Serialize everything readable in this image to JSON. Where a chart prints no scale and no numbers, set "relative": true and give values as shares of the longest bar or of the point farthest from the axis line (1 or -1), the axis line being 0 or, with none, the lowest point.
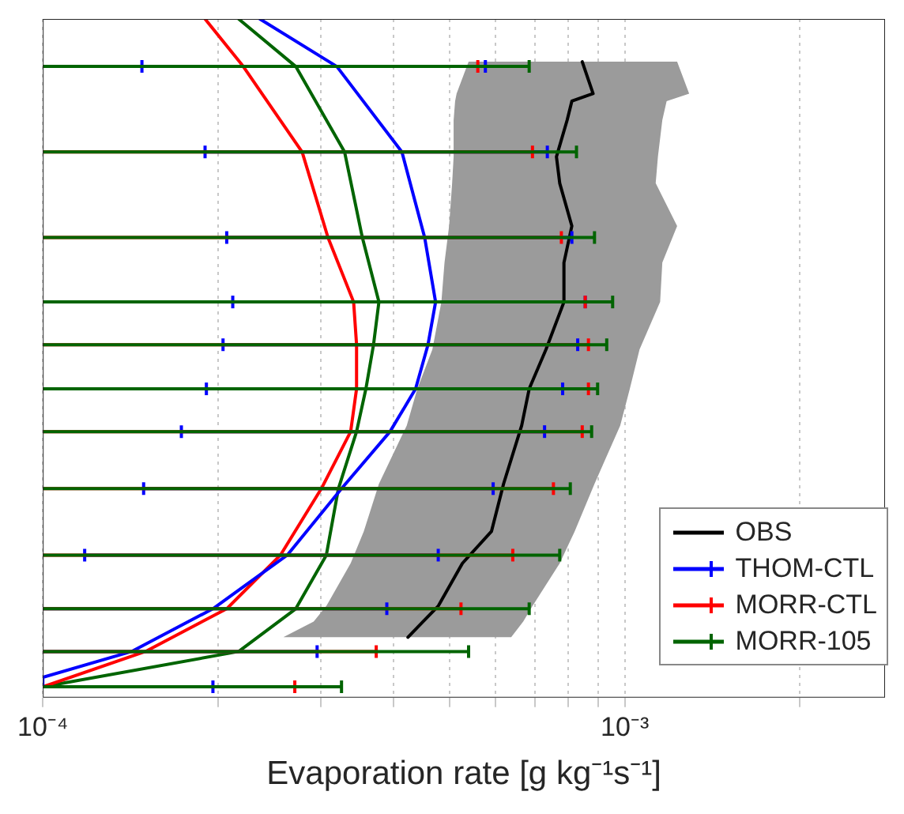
{
  "chart_data": {
    "type": "line",
    "xlabel": "Evaporation rate [g kg⁻¹s⁻¹]",
    "log": "x",
    "relative": true,
    "grid": "x",
    "legend": "bottom right",
    "xlim": [
      0.0001,
      0.0028
    ],
    "xticks": [
      {
        "value": 0.0001,
        "label": "10⁻⁴"
      },
      {
        "value": 0.0002,
        "label": null
      },
      {
        "value": 0.0003,
        "label": null
      },
      {
        "value": 0.0004,
        "label": null
      },
      {
        "value": 0.0005,
        "label": null
      },
      {
        "value": 0.0006,
        "label": null
      },
      {
        "value": 0.0007,
        "label": null
      },
      {
        "value": 0.0008,
        "label": null
      },
      {
        "value": 0.0009,
        "label": null
      },
      {
        "value": 0.001,
        "label": "10⁻³"
      },
      {
        "value": 0.002,
        "label": null
      }
    ],
    "series": [
      {
        "color": "#9b9b9b",
        "type": "area",
        "x": [
          0.000539,
          0.000514,
          0.000511,
          0.000508,
          0.000508,
          0.000505,
          0.000499,
          0.00049,
          0.000484,
          0.000467,
          0.00044,
          0.000422,
          0.000378,
          0.000356,
          0.000338,
          0.000307,
          0.000292,
          0.000259,
          0.000638,
          0.000669,
          0.000694,
          0.000773,
          0.00082,
          0.000887,
          0.000982,
          0.00102,
          0.00106,
          0.00115,
          0.00116,
          0.00123,
          0.00113,
          0.00114,
          0.00116,
          0.00118,
          0.00129,
          0.00123
        ],
        "values": [
          0.937,
          0.89,
          0.879,
          0.851,
          0.797,
          0.758,
          0.695,
          0.641,
          0.583,
          0.513,
          0.455,
          0.401,
          0.315,
          0.245,
          0.198,
          0.135,
          0.112,
          0.089,
          0.089,
          0.112,
          0.135,
          0.198,
          0.245,
          0.315,
          0.401,
          0.455,
          0.513,
          0.583,
          0.641,
          0.695,
          0.758,
          0.797,
          0.851,
          0.879,
          0.89,
          0.937
        ]
      },
      {
        "name": "OBS",
        "color": "#000000",
        "x": [
          0.000845,
          0.000882,
          0.000811,
          0.000796,
          0.000763,
          0.000773,
          0.000811,
          0.000786,
          0.000786,
          0.000732,
          0.000685,
          0.000665,
          0.000619,
          0.00059,
          0.000526,
          0.000478,
          0.00045,
          0.000424
        ],
        "values": [
          0.937,
          0.89,
          0.879,
          0.851,
          0.797,
          0.758,
          0.695,
          0.641,
          0.583,
          0.513,
          0.455,
          0.401,
          0.315,
          0.245,
          0.198,
          0.135,
          0.112,
          0.089
        ]
      },
      {
        "name": "THOM-CTL",
        "color": "#0000ff",
        "x": [
          0.000236,
          0.00032,
          0.000414,
          0.000453,
          0.000473,
          0.000459,
          0.000437,
          0.000395,
          0.000326,
          0.000263,
          0.000196,
          0.000142,
          0.0001,
          0.0001
        ],
        "values": [
          1,
          0.93,
          0.804,
          0.678,
          0.583,
          0.52,
          0.455,
          0.392,
          0.308,
          0.21,
          0.131,
          0.068,
          0.03,
          0.016
        ],
        "xerrors": [
          null,
          [
            0.000148,
            0.000576
          ],
          [
            0.00019,
            0.000736
          ],
          [
            0.000207,
            0.000811
          ],
          [
            0.000212,
            0.000855
          ],
          [
            0.000204,
            0.00083
          ],
          [
            0.000191,
            0.000782
          ],
          [
            0.000173,
            0.000728
          ],
          [
            0.000149,
            0.000594
          ],
          [
            0.000118,
            0.000478
          ],
          [
            0.0001,
            0.00039
          ],
          [
            0.0001,
            0.000296
          ],
          null,
          [
            0.0001,
            0.000196
          ]
        ]
      },
      {
        "name": "MORR-CTL",
        "color": "#ff0000",
        "x": [
          0.00019,
          0.000221,
          0.000279,
          0.000309,
          0.000342,
          0.000346,
          0.000346,
          0.000338,
          0.000301,
          0.000256,
          0.000207,
          0.00015,
          0.0001
        ],
        "values": [
          1,
          0.93,
          0.804,
          0.678,
          0.583,
          0.52,
          0.455,
          0.392,
          0.308,
          0.21,
          0.131,
          0.068,
          0.016
        ],
        "xerrors": [
          null,
          [
            0.0001,
            0.000559
          ],
          [
            0.0001,
            0.000694
          ],
          [
            0.0001,
            0.000778
          ],
          [
            0.0001,
            0.000855
          ],
          [
            0.0001,
            0.000866
          ],
          [
            0.0001,
            0.000866
          ],
          [
            0.0001,
            0.000845
          ],
          [
            0.0001,
            0.000754
          ],
          [
            0.0001,
            0.000642
          ],
          [
            0.0001,
            0.000523
          ],
          [
            0.0001,
            0.000374
          ],
          [
            0.0001,
            0.000271
          ]
        ]
      },
      {
        "name": "MORR-105",
        "color": "#006400",
        "x": [
          0.000217,
          0.000272,
          0.00033,
          0.000354,
          0.000378,
          0.00037,
          0.000359,
          0.000346,
          0.000322,
          0.000307,
          0.000272,
          0.000217,
          0.0001
        ],
        "values": [
          1,
          0.93,
          0.804,
          0.678,
          0.583,
          0.52,
          0.455,
          0.392,
          0.308,
          0.21,
          0.131,
          0.068,
          0.016
        ],
        "xerrors": [
          null,
          [
            0.0001,
            0.000685
          ],
          [
            0.0001,
            0.000826
          ],
          [
            0.0001,
            0.000887
          ],
          [
            0.0001,
            0.000953
          ],
          [
            0.0001,
            0.000931
          ],
          [
            0.0001,
            0.000898
          ],
          [
            0.0001,
            0.000877
          ],
          [
            0.0001,
            0.000806
          ],
          [
            0.0001,
            0.000773
          ],
          [
            0.0001,
            0.000685
          ],
          [
            0.0001,
            0.000539
          ],
          [
            0.0001,
            0.000326
          ]
        ]
      }
    ]
  }
}
